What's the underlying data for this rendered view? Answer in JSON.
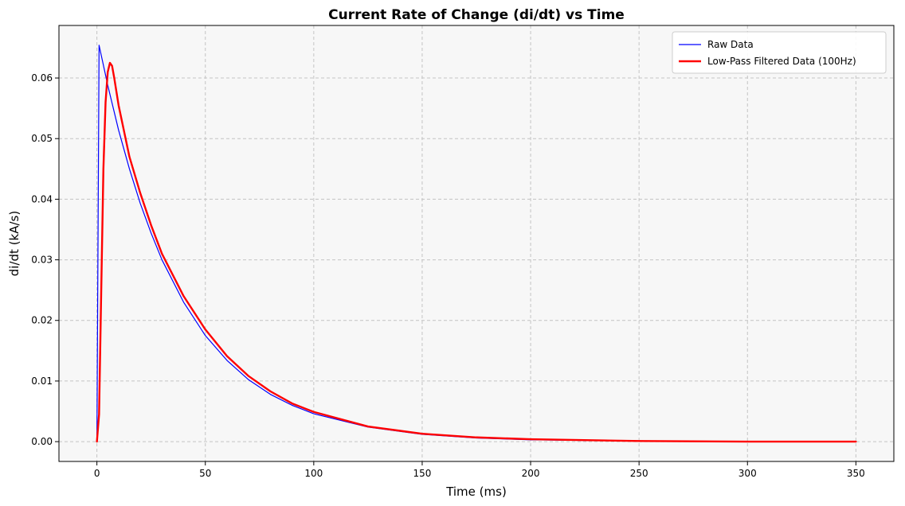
{
  "chart_data": {
    "type": "line",
    "title": "Current Rate of Change (di/dt) vs Time",
    "xlabel": "Time (ms)",
    "ylabel": "di/dt (kA/s)",
    "xlim": [
      -17.5,
      367.5
    ],
    "ylim": [
      -0.00327,
      0.06867
    ],
    "xticks": [
      0,
      50,
      100,
      150,
      200,
      250,
      300,
      350
    ],
    "xtick_labels": [
      "0",
      "50",
      "100",
      "150",
      "200",
      "250",
      "300",
      "350"
    ],
    "yticks": [
      0.0,
      0.01,
      0.02,
      0.03,
      0.04,
      0.05,
      0.06
    ],
    "ytick_labels": [
      "0.00",
      "0.01",
      "0.02",
      "0.03",
      "0.04",
      "0.05",
      "0.06"
    ],
    "grid": true,
    "legend_position": "top-right",
    "series": [
      {
        "name": "Raw Data",
        "color": "#0000ff",
        "x": [
          0,
          1,
          5,
          10,
          15,
          20,
          25,
          30,
          40,
          50,
          60,
          70,
          80,
          90,
          100,
          125,
          150,
          175,
          200,
          250,
          300,
          350
        ],
        "y": [
          0,
          0.0654,
          0.0588,
          0.0514,
          0.045,
          0.0393,
          0.0344,
          0.03,
          0.023,
          0.0175,
          0.0134,
          0.0102,
          0.0078,
          0.006,
          0.0046,
          0.0024,
          0.0012,
          0.0006,
          0.0003,
          0.0001,
          0.0,
          0.0
        ]
      },
      {
        "name": "Low-Pass Filtered Data (100Hz)",
        "color": "#ff0000",
        "x": [
          0,
          1,
          2,
          3,
          4,
          5,
          6,
          7,
          8,
          10,
          15,
          20,
          25,
          30,
          40,
          50,
          60,
          70,
          80,
          90,
          100,
          125,
          150,
          175,
          200,
          250,
          300,
          350
        ],
        "y": [
          0,
          0.0045,
          0.025,
          0.045,
          0.056,
          0.061,
          0.0625,
          0.062,
          0.06,
          0.0555,
          0.047,
          0.041,
          0.0357,
          0.031,
          0.024,
          0.0185,
          0.0141,
          0.0108,
          0.0083,
          0.0063,
          0.0049,
          0.0025,
          0.0013,
          0.0007,
          0.0004,
          0.0001,
          0.0,
          0.0
        ]
      }
    ]
  }
}
